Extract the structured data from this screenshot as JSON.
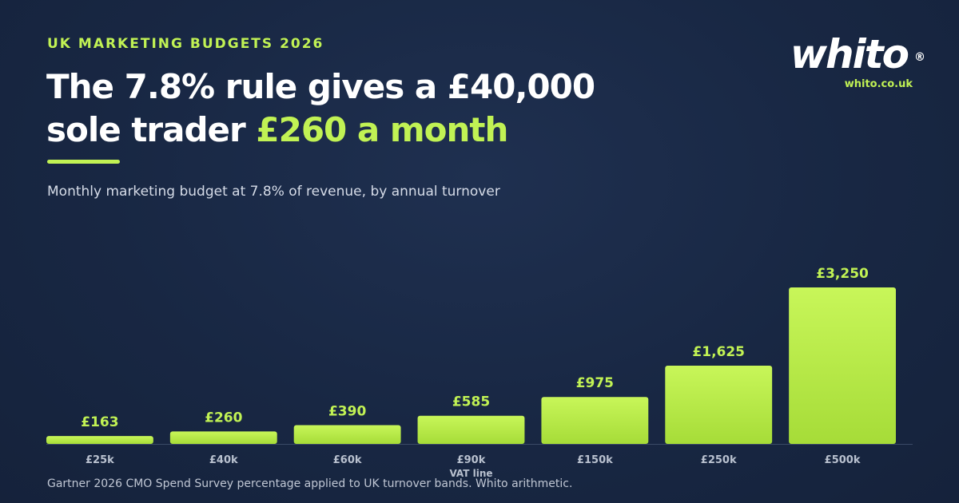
{
  "header": {
    "eyebrow": "UK MARKETING BUDGETS 2026",
    "headline_part1": "The 7.8% rule gives a £40,000 sole trader ",
    "headline_highlight": "£260 a month",
    "subtitle": "Monthly marketing budget at 7.8% of revenue, by annual turnover"
  },
  "brand": {
    "name": "whito",
    "registered_mark": "®",
    "url": "whito.co.uk"
  },
  "colors": {
    "accent": "#c1f254",
    "accent_dark": "#a8dd3a",
    "background": "#182743"
  },
  "chart_data": {
    "type": "bar",
    "categories": [
      "£25k",
      "£40k",
      "£60k",
      "£90k",
      "£150k",
      "£250k",
      "£500k"
    ],
    "values": [
      163,
      260,
      390,
      585,
      975,
      1625,
      3250
    ],
    "data_labels": [
      "£163",
      "£260",
      "£390",
      "£585",
      "£975",
      "£1,625",
      "£3,250"
    ],
    "annotations": [
      {
        "category": "£90k",
        "text": "VAT line"
      }
    ],
    "ylim": [
      0,
      3250
    ],
    "grid": false,
    "legend": "none",
    "title": "",
    "xlabel": "",
    "ylabel": ""
  },
  "footnote": "Gartner 2026 CMO Spend Survey percentage applied to UK turnover bands. Whito arithmetic."
}
